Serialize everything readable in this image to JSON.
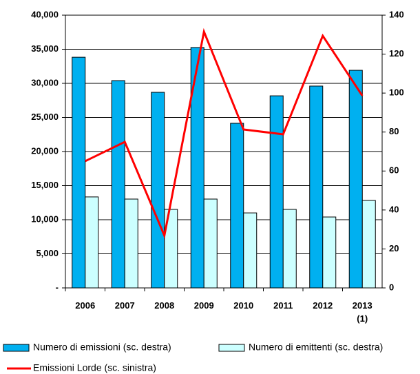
{
  "chart_data": {
    "type": "bar-line",
    "categories": [
      "2006",
      "2007",
      "2008",
      "2009",
      "2010",
      "2011",
      "2012",
      "2013\n(1)"
    ],
    "series": [
      {
        "name": "Numero di emissioni (sc. destra)",
        "type": "bar",
        "axis": "y2",
        "color": "#00b0f0",
        "values": [
          118.4,
          106.4,
          100.4,
          123.4,
          84.5,
          98.6,
          103.6,
          111.7
        ]
      },
      {
        "name": "Numero di emittenti (sc. destra)",
        "type": "bar",
        "axis": "y2",
        "color": "#ccffff",
        "values": [
          46.7,
          45.6,
          40.3,
          45.6,
          38.5,
          40.3,
          36.4,
          44.9
        ]
      },
      {
        "name": "Emissioni Lorde (sc. sinistra)",
        "type": "line",
        "axis": "y",
        "color": "#ff0000",
        "values": [
          18590,
          21410,
          7680,
          37580,
          23230,
          22530,
          36970,
          28180
        ]
      }
    ],
    "ylim": [
      0,
      40000
    ],
    "yticks": [
      {
        "value": 0,
        "label": "-"
      },
      {
        "value": 5000,
        "label": "5,000"
      },
      {
        "value": 10000,
        "label": "10,000"
      },
      {
        "value": 15000,
        "label": "15,000"
      },
      {
        "value": 20000,
        "label": "20,000"
      },
      {
        "value": 25000,
        "label": "25,000"
      },
      {
        "value": 30000,
        "label": "30,000"
      },
      {
        "value": 35000,
        "label": "35,000"
      },
      {
        "value": 40000,
        "label": "40,000"
      }
    ],
    "y2lim": [
      0,
      140
    ],
    "y2ticks": [
      0,
      20,
      40,
      60,
      80,
      100,
      120,
      140
    ],
    "grid": true
  }
}
